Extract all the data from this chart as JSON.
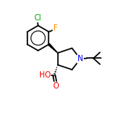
{
  "bg_color": "#ffffff",
  "bond_color": "#000000",
  "bond_width": 1.2,
  "atom_colors": {
    "C": "#000000",
    "N": "#0000ff",
    "O": "#ff0000",
    "Cl": "#00aa00",
    "F": "#ff8c00"
  },
  "font_size": 6.5
}
